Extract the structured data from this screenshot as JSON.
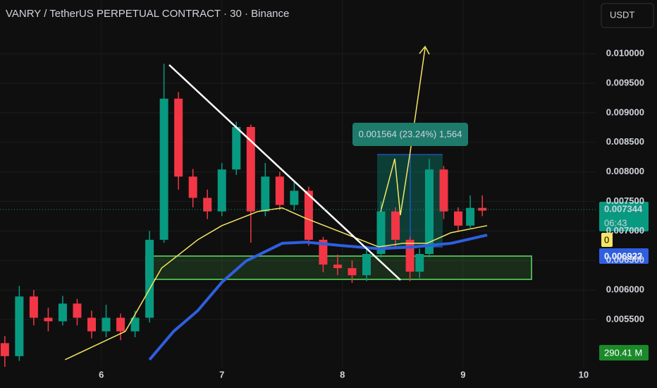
{
  "chart_data": {
    "type": "candlestick",
    "title": "VANRY / TetherUS PERPETUAL CONTRACT · 30 · Binance",
    "currency_button": "USDT",
    "x": [
      5.2,
      5.32,
      5.44,
      5.56,
      5.68,
      5.8,
      5.92,
      6.04,
      6.16,
      6.28,
      6.4,
      6.52,
      6.64,
      6.76,
      6.88,
      7.0,
      7.12,
      7.24,
      7.36,
      7.48,
      7.6,
      7.72,
      7.84,
      7.96,
      8.08,
      8.2,
      8.32,
      8.44,
      8.56,
      8.64,
      8.72,
      8.84,
      8.96,
      9.06,
      9.16
    ],
    "open": [
      0.0051,
      0.00488,
      0.00589,
      0.00553,
      0.00547,
      0.00577,
      0.00553,
      0.0053,
      0.00553,
      0.0053,
      0.00553,
      0.00685,
      0.00924,
      0.00792,
      0.00756,
      0.00733,
      0.00804,
      0.00876,
      0.00733,
      0.00792,
      0.00744,
      0.00768,
      0.00685,
      0.00643,
      0.00637,
      0.00625,
      0.00661,
      0.00733,
      0.00685,
      0.00631,
      0.00661,
      0.00804,
      0.00733,
      0.00709,
      0.00739
    ],
    "high": [
      0.00522,
      0.00607,
      0.006,
      0.0057,
      0.0059,
      0.00585,
      0.00565,
      0.00575,
      0.0056,
      0.00565,
      0.007,
      0.00983,
      0.00935,
      0.00805,
      0.0077,
      0.00815,
      0.00885,
      0.0088,
      0.00815,
      0.008,
      0.00785,
      0.00775,
      0.0069,
      0.0066,
      0.0065,
      0.00675,
      0.0075,
      0.0074,
      0.0069,
      0.0067,
      0.00822,
      0.0081,
      0.0074,
      0.0076,
      0.0076
    ],
    "low": [
      0.0047,
      0.0048,
      0.0054,
      0.0053,
      0.0054,
      0.0054,
      0.00518,
      0.0052,
      0.00515,
      0.0052,
      0.00545,
      0.0068,
      0.0077,
      0.0074,
      0.0072,
      0.00725,
      0.00795,
      0.0068,
      0.00725,
      0.00735,
      0.00735,
      0.00675,
      0.0063,
      0.00625,
      0.00612,
      0.00615,
      0.00655,
      0.0067,
      0.00615,
      0.0062,
      0.00655,
      0.0072,
      0.007,
      0.00705,
      0.00725
    ],
    "close": [
      0.00488,
      0.00589,
      0.00553,
      0.00547,
      0.00577,
      0.00553,
      0.0053,
      0.00553,
      0.0053,
      0.00553,
      0.00685,
      0.00924,
      0.00792,
      0.00756,
      0.00733,
      0.00804,
      0.00876,
      0.00733,
      0.00792,
      0.00744,
      0.00768,
      0.00685,
      0.00643,
      0.00637,
      0.00625,
      0.00661,
      0.00733,
      0.00685,
      0.00631,
      0.00661,
      0.00804,
      0.00733,
      0.00709,
      0.00739,
      0.007344
    ],
    "up_color": "#089981",
    "down_color": "#f23645",
    "series": [
      {
        "color": "#f5e663",
        "x": [
          5.7,
          6.2,
          6.5,
          6.8,
          7.0,
          7.3,
          7.5,
          7.7,
          8.0,
          8.3,
          8.5,
          8.7,
          8.9,
          9.2
        ],
        "values": [
          0.00482,
          0.0053,
          0.00637,
          0.00685,
          0.00709,
          0.00733,
          0.00739,
          0.00721,
          0.00697,
          0.00673,
          0.00679,
          0.00679,
          0.00697,
          0.00709
        ]
      },
      {
        "color": "#2f5fe0",
        "x": [
          6.4,
          6.6,
          6.8,
          7.0,
          7.2,
          7.5,
          7.7,
          8.0,
          8.3,
          8.6,
          8.9,
          9.2
        ],
        "values": [
          0.00482,
          0.0053,
          0.00565,
          0.00613,
          0.00649,
          0.00679,
          0.00681,
          0.00675,
          0.0067,
          0.00673,
          0.00679,
          0.00693
        ]
      }
    ],
    "xlim": [
      5.16,
      10.1
    ],
    "ylim": [
      0.00446,
      0.01091
    ],
    "xticks": [
      6,
      7,
      8,
      9,
      10
    ],
    "yticks": [
      {
        "value": 0.0055,
        "label": "0.005500"
      },
      {
        "value": 0.006,
        "label": "0.006000"
      },
      {
        "value": 0.0065,
        "label": "0.006500"
      },
      {
        "value": 0.007,
        "label": "0.007000"
      },
      {
        "value": 0.0075,
        "label": "0.007500"
      },
      {
        "value": 0.008,
        "label": "0.008000"
      },
      {
        "value": 0.0085,
        "label": "0.008500"
      },
      {
        "value": 0.009,
        "label": "0.009000"
      },
      {
        "value": 0.0095,
        "label": "0.009500"
      },
      {
        "value": 0.01,
        "label": "0.010000"
      }
    ],
    "grid": true,
    "annotations": {
      "measure_label": "0.001564 (23.24%) 1,564",
      "last_price_label": "0.007344",
      "countdown": "06:43",
      "alert_label": "0",
      "ma_label": "0.006922",
      "volume_label": "290.41 M"
    }
  }
}
